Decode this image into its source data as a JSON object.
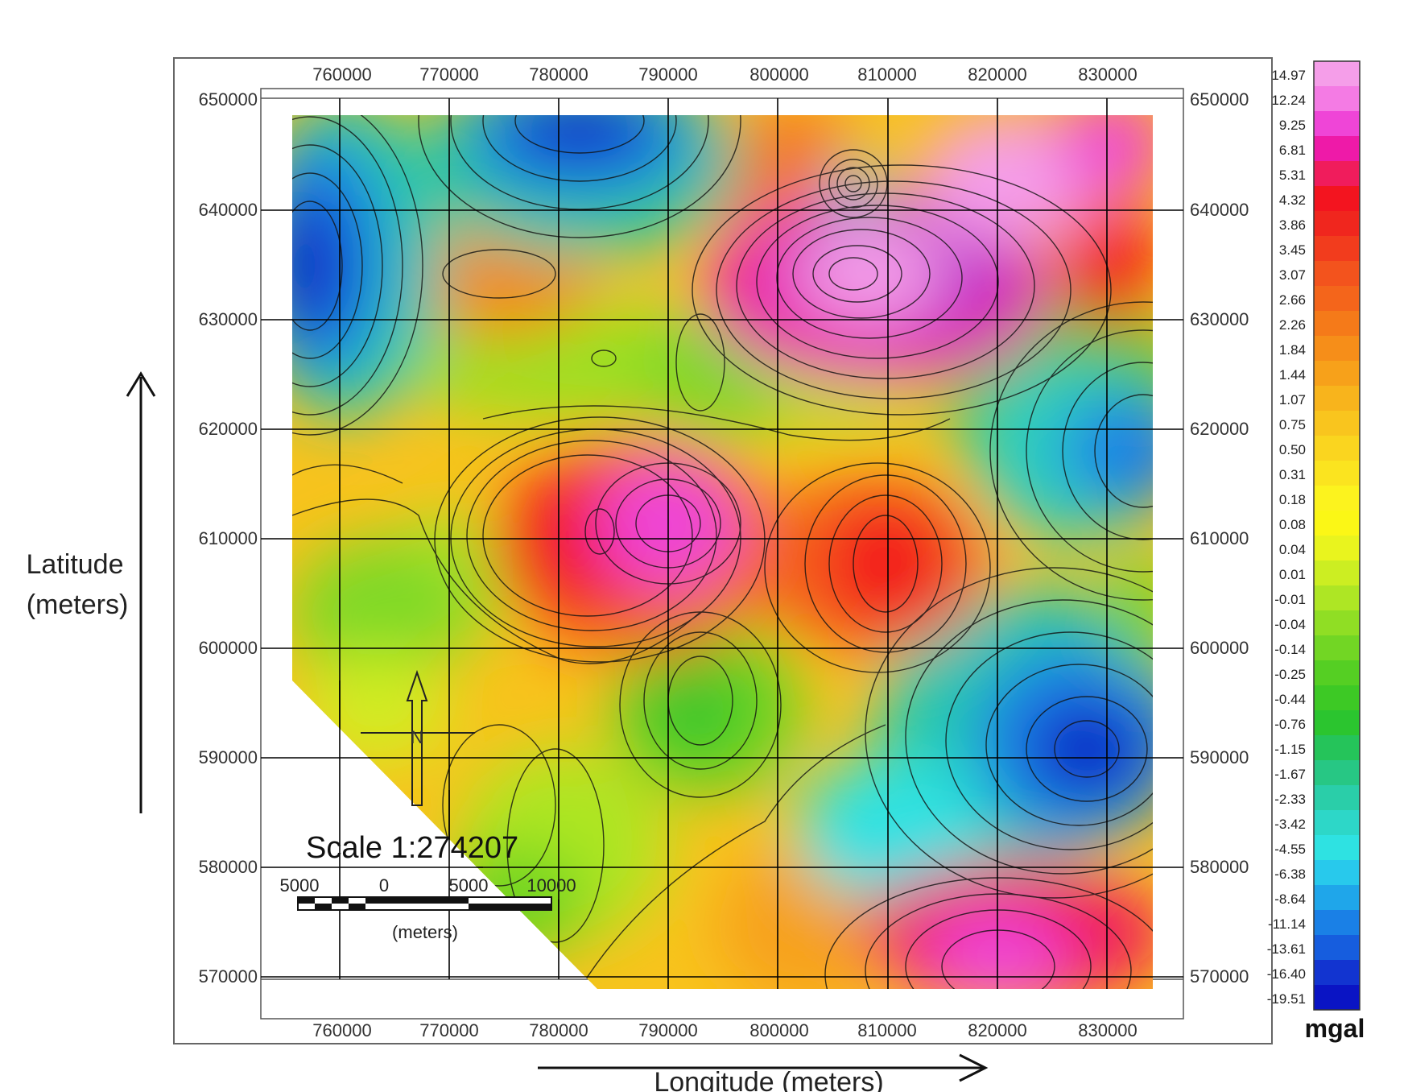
{
  "map": {
    "x_ticks": [
      "760000",
      "770000",
      "780000",
      "790000",
      "800000",
      "810000",
      "820000",
      "830000"
    ],
    "y_ticks": [
      "650000",
      "640000",
      "630000",
      "620000",
      "610000",
      "600000",
      "590000",
      "580000",
      "570000"
    ],
    "y_title_line1": "Latitude",
    "y_title_line2": "(meters)",
    "x_title": "Longitude (meters)",
    "north_label": "N",
    "scale": {
      "title": "Scale 1:274207",
      "ticks": [
        "5000",
        "0",
        "5000",
        "10000"
      ],
      "unit": "(meters)"
    }
  },
  "colorbar": {
    "unit": "mgal",
    "labels": [
      "14.97",
      "12.24",
      "9.25",
      "6.81",
      "5.31",
      "4.32",
      "3.86",
      "3.45",
      "3.07",
      "2.66",
      "2.26",
      "1.84",
      "1.44",
      "1.07",
      "0.75",
      "0.50",
      "0.31",
      "0.18",
      "0.08",
      "0.04",
      "0.01",
      "-0.01",
      "-0.04",
      "-0.14",
      "-0.25",
      "-0.44",
      "-0.76",
      "-1.15",
      "-1.67",
      "-2.33",
      "-3.42",
      "-4.55",
      "-6.38",
      "-8.64",
      "-11.14",
      "-13.61",
      "-16.40",
      "-19.51"
    ],
    "colors": [
      "#f59ee9",
      "#f47be4",
      "#ef45d7",
      "#ee1aa8",
      "#f01c5c",
      "#f3141f",
      "#f0261e",
      "#f23c1d",
      "#f3531d",
      "#f4651b",
      "#f57a19",
      "#f68e19",
      "#f7a11a",
      "#f8b41c",
      "#f9c51e",
      "#fad51f",
      "#fbe41f",
      "#fcf31e",
      "#fbf716",
      "#e9f41e",
      "#ccee22",
      "#aee624",
      "#90de24",
      "#72d624",
      "#55cf23",
      "#3dc925",
      "#2bc52f",
      "#25c45a",
      "#27c784",
      "#2acea9",
      "#2dd7c8",
      "#2ee2e2",
      "#28c9ec",
      "#1fa6ea",
      "#1a80e6",
      "#165dde",
      "#1234d0",
      "#0a14c4"
    ]
  }
}
